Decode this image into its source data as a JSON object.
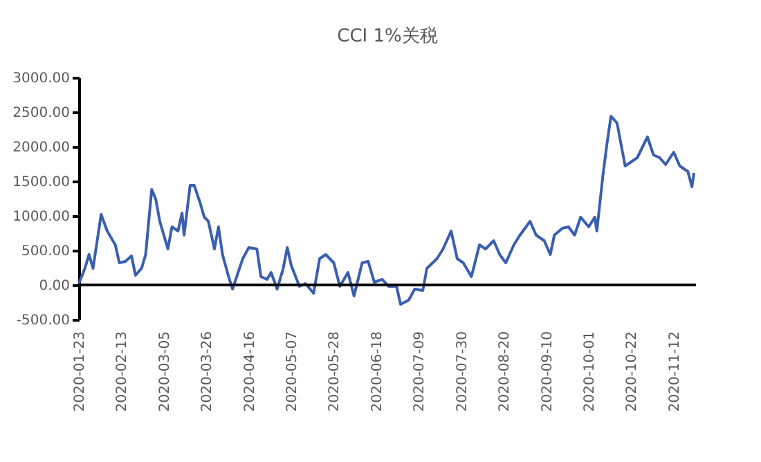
{
  "chart_data": {
    "type": "line",
    "title": "CCI 1%关税",
    "x": [
      "2020-01-23",
      "2020-01-26",
      "2020-01-28",
      "2020-01-30",
      "2020-02-03",
      "2020-02-06",
      "2020-02-10",
      "2020-02-12",
      "2020-02-15",
      "2020-02-18",
      "2020-02-20",
      "2020-02-23",
      "2020-02-25",
      "2020-02-28",
      "2020-03-01",
      "2020-03-03",
      "2020-03-05",
      "2020-03-07",
      "2020-03-09",
      "2020-03-12",
      "2020-03-14",
      "2020-03-15",
      "2020-03-18",
      "2020-03-20",
      "2020-03-23",
      "2020-03-25",
      "2020-03-27",
      "2020-03-30",
      "2020-04-01",
      "2020-04-03",
      "2020-04-06",
      "2020-04-08",
      "2020-04-10",
      "2020-04-13",
      "2020-04-16",
      "2020-04-20",
      "2020-04-22",
      "2020-04-25",
      "2020-04-27",
      "2020-04-30",
      "2020-05-03",
      "2020-05-05",
      "2020-05-07",
      "2020-05-11",
      "2020-05-14",
      "2020-05-18",
      "2020-05-21",
      "2020-05-24",
      "2020-05-28",
      "2020-05-31",
      "2020-06-04",
      "2020-06-07",
      "2020-06-11",
      "2020-06-14",
      "2020-06-17",
      "2020-06-21",
      "2020-06-24",
      "2020-06-28",
      "2020-06-30",
      "2020-07-04",
      "2020-07-07",
      "2020-07-11",
      "2020-07-13",
      "2020-07-18",
      "2020-07-21",
      "2020-07-25",
      "2020-07-28",
      "2020-07-31",
      "2020-08-04",
      "2020-08-08",
      "2020-08-11",
      "2020-08-15",
      "2020-08-18",
      "2020-08-21",
      "2020-08-25",
      "2020-08-28",
      "2020-09-02",
      "2020-09-05",
      "2020-09-09",
      "2020-09-12",
      "2020-09-14",
      "2020-09-18",
      "2020-09-21",
      "2020-09-24",
      "2020-09-27",
      "2020-10-01",
      "2020-10-04",
      "2020-10-05",
      "2020-10-08",
      "2020-10-10",
      "2020-10-12",
      "2020-10-15",
      "2020-10-19",
      "2020-10-22",
      "2020-10-25",
      "2020-10-30",
      "2020-11-02",
      "2020-11-05",
      "2020-11-08",
      "2020-11-12",
      "2020-11-15",
      "2020-11-19",
      "2020-11-21",
      "2020-11-22"
    ],
    "series": [
      {
        "color": "#3a5fb0",
        "values": [
          20,
          240,
          440,
          240,
          1020,
          780,
          580,
          320,
          340,
          420,
          140,
          240,
          440,
          1380,
          1240,
          920,
          720,
          520,
          840,
          780,
          1040,
          720,
          1440,
          1440,
          1180,
          980,
          920,
          520,
          840,
          440,
          120,
          -60,
          120,
          380,
          540,
          520,
          120,
          80,
          180,
          -60,
          240,
          540,
          280,
          -20,
          20,
          -120,
          380,
          440,
          320,
          -20,
          180,
          -160,
          320,
          340,
          40,
          80,
          -20,
          -20,
          -280,
          -220,
          -60,
          -80,
          240,
          380,
          520,
          780,
          380,
          320,
          120,
          580,
          520,
          640,
          440,
          320,
          580,
          720,
          920,
          720,
          640,
          440,
          720,
          820,
          840,
          720,
          980,
          840,
          980,
          780,
          1580,
          2040,
          2440,
          2340,
          1720,
          1780,
          1840,
          2140,
          1880,
          1840,
          1740,
          1920,
          1720,
          1640,
          1420,
          1620
        ]
      }
    ],
    "xlim": [
      "2020-01-23",
      "2020-11-23"
    ],
    "xticks": [
      "2020-01-23",
      "2020-02-13",
      "2020-03-05",
      "2020-03-26",
      "2020-04-16",
      "2020-05-07",
      "2020-05-28",
      "2020-06-18",
      "2020-07-09",
      "2020-07-30",
      "2020-08-20",
      "2020-09-10",
      "2020-10-01",
      "2020-10-22",
      "2020-11-12"
    ],
    "ylim": [
      -500,
      3000
    ],
    "yticks": [
      {
        "value": -500,
        "label": "-500.00"
      },
      {
        "value": 0,
        "label": "0.00"
      },
      {
        "value": 500,
        "label": "500.00"
      },
      {
        "value": 1000,
        "label": "1000.00"
      },
      {
        "value": 1500,
        "label": "1500.00"
      },
      {
        "value": 2000,
        "label": "2000.00"
      },
      {
        "value": 2500,
        "label": "2500.00"
      },
      {
        "value": 3000,
        "label": "3000.00"
      }
    ],
    "ref_lines": [
      {
        "axis": "y",
        "value": 0,
        "color": "#000000",
        "line_style": "solid"
      }
    ],
    "grid": false,
    "marker": "none",
    "line_style": "solid"
  }
}
